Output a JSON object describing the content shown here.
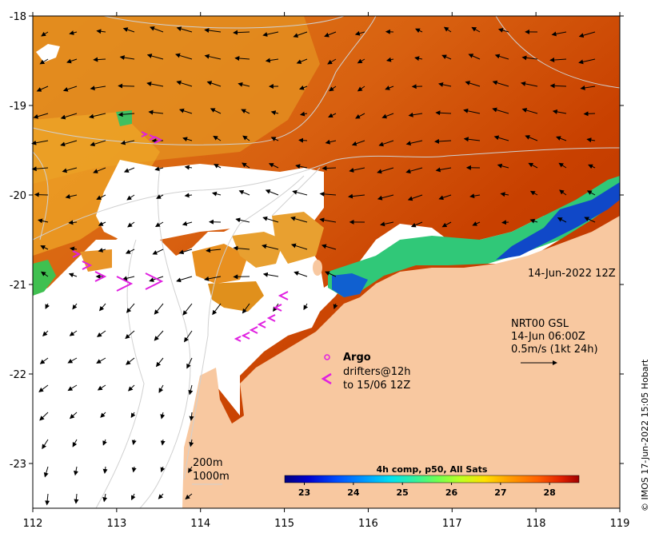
{
  "map": {
    "lon_ticks": [
      "112",
      "113",
      "114",
      "115",
      "116",
      "117",
      "118",
      "119"
    ],
    "lat_ticks": [
      "-18",
      "-19",
      "-20",
      "-21",
      "-22",
      "-23"
    ],
    "lon_range": [
      112,
      119
    ],
    "lat_range": [
      -23.5,
      -18
    ],
    "colors": {
      "land": "#f8c8a0",
      "cloud": "#ffffff",
      "sst_hot": "#c83800",
      "sst_warm": "#e07810",
      "sst_mid": "#f0b030",
      "sst_cool": "#30c080",
      "sst_cold": "#1040c0",
      "argo": "#e020e0",
      "contour": "#c0c0c0"
    }
  },
  "labels": {
    "date": "14-Jun-2022 12Z",
    "current_product": "NRT00 GSL",
    "current_time": "14-Jun 06:00Z",
    "current_scale": "0.5m/s (1kt 24h)",
    "argo_title": "Argo",
    "drifters_line1": "drifters@12h",
    "drifters_line2": "to 15/06 12Z",
    "contour_200": "200m",
    "contour_1000": "1000m",
    "copyright": "© IMOS 17-Jun-2022 15:05 Hobart"
  },
  "icons": {
    "argo_marker": "circle-icon",
    "drifter_marker": "chevron-left-icon"
  },
  "colorbar": {
    "title": "4h comp, p50, All Sats",
    "ticks": [
      "23",
      "24",
      "25",
      "26",
      "27",
      "28"
    ],
    "range": [
      22.6,
      28.6
    ],
    "palette": [
      "#00007f",
      "#0000d0",
      "#0040ff",
      "#0090ff",
      "#00d0ff",
      "#20f0c0",
      "#60ff60",
      "#b0ff20",
      "#ffe000",
      "#ffa000",
      "#ff6000",
      "#e02000",
      "#a00000"
    ]
  }
}
